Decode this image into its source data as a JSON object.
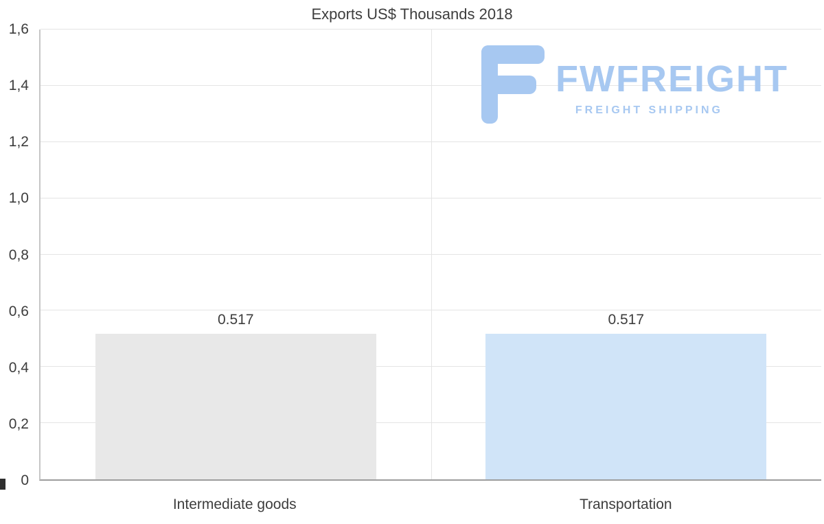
{
  "chart_data": {
    "type": "bar",
    "title": "Exports US$ Thousands 2018",
    "categories": [
      "Intermediate goods",
      "Transportation"
    ],
    "values": [
      0.517,
      0.517
    ],
    "value_labels": [
      "0.517",
      "0.517"
    ],
    "bar_colors": [
      "#e8e8e8",
      "#d0e4f8"
    ],
    "ylim": [
      0,
      1.6
    ],
    "ytick_values": [
      0,
      0.2,
      0.4,
      0.6,
      0.8,
      1.0,
      1.2,
      1.4,
      1.6
    ],
    "ytick_labels": [
      "0",
      "0,2",
      "0,4",
      "0,6",
      "0,8",
      "1,0",
      "1,2",
      "1,4",
      "1,6"
    ],
    "grid": true,
    "legend": false,
    "xlabel": "",
    "ylabel": ""
  },
  "watermark": {
    "brand": "FWFREIGHT",
    "tagline": "FREIGHT SHIPPING",
    "color": "#a7c8f1"
  },
  "colors": {
    "text": "#3d3d3d",
    "grid": "#e4e4e4",
    "axis_left": "#c6c6c6",
    "axis_bottom": "#9d9d9d",
    "bar_gray": "#e8e8e8",
    "bar_blue": "#d0e4f8"
  }
}
